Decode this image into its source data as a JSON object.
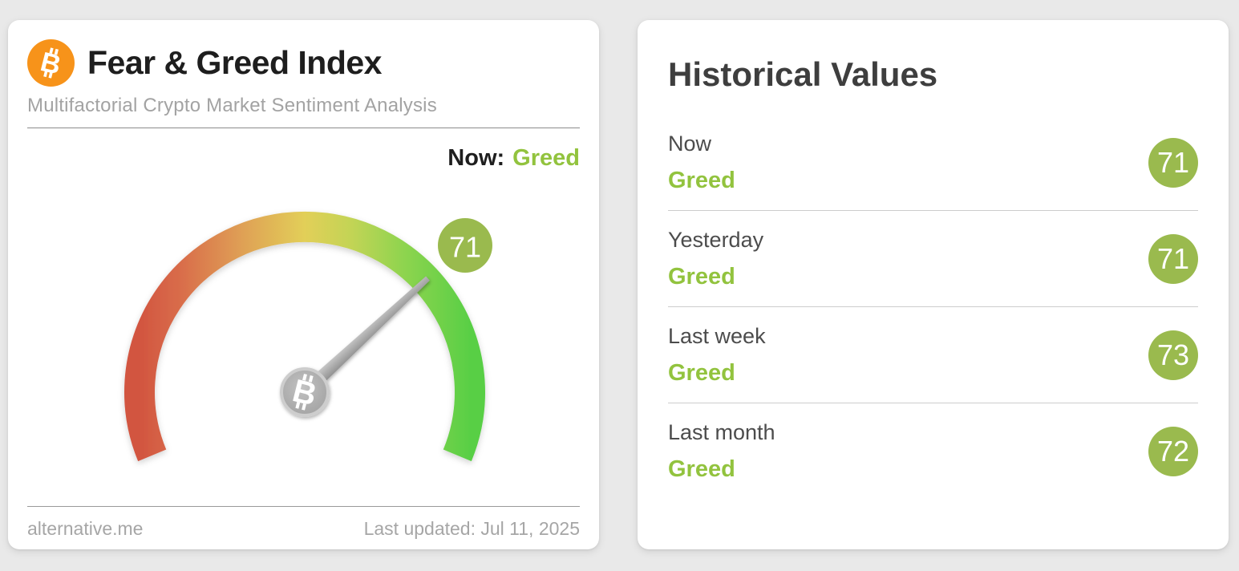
{
  "page": {
    "background_color": "#e9e9e9"
  },
  "fear_greed_card": {
    "title": "Fear & Greed Index",
    "subtitle": "Multifactorial Crypto Market Sentiment Analysis",
    "now_label": "Now:",
    "now_value": "Greed",
    "gauge_badge_value": "71",
    "footer": {
      "source": "alternative.me",
      "last_updated": "Last updated: Jul 11, 2025"
    }
  },
  "historical_card": {
    "title": "Historical Values",
    "rows": [
      {
        "label": "Now",
        "sentiment": "Greed",
        "value": "71"
      },
      {
        "label": "Yesterday",
        "sentiment": "Greed",
        "value": "71"
      },
      {
        "label": "Last week",
        "sentiment": "Greed",
        "value": "73"
      },
      {
        "label": "Last month",
        "sentiment": "Greed",
        "value": "72"
      }
    ]
  },
  "chart_data": {
    "type": "gauge",
    "title": "Fear & Greed Index",
    "value": 71,
    "min": 0,
    "max": 100,
    "classification": "Greed",
    "arc_sweep_degrees": 225,
    "scale_colors": [
      "#d25540",
      "#d96e4b",
      "#dfa055",
      "#e2cf59",
      "#c3d455",
      "#8ed44f",
      "#59cf45"
    ],
    "historical": [
      {
        "period": "Now",
        "classification": "Greed",
        "value": 71
      },
      {
        "period": "Yesterday",
        "classification": "Greed",
        "value": 71
      },
      {
        "period": "Last week",
        "classification": "Greed",
        "value": 73
      },
      {
        "period": "Last month",
        "classification": "Greed",
        "value": 72
      }
    ]
  },
  "colors": {
    "greed_green": "#92c33e",
    "badge_green": "#9aba4e",
    "bitcoin_orange": "#f7931a"
  },
  "icons": {
    "bitcoin_glyph": "B"
  }
}
